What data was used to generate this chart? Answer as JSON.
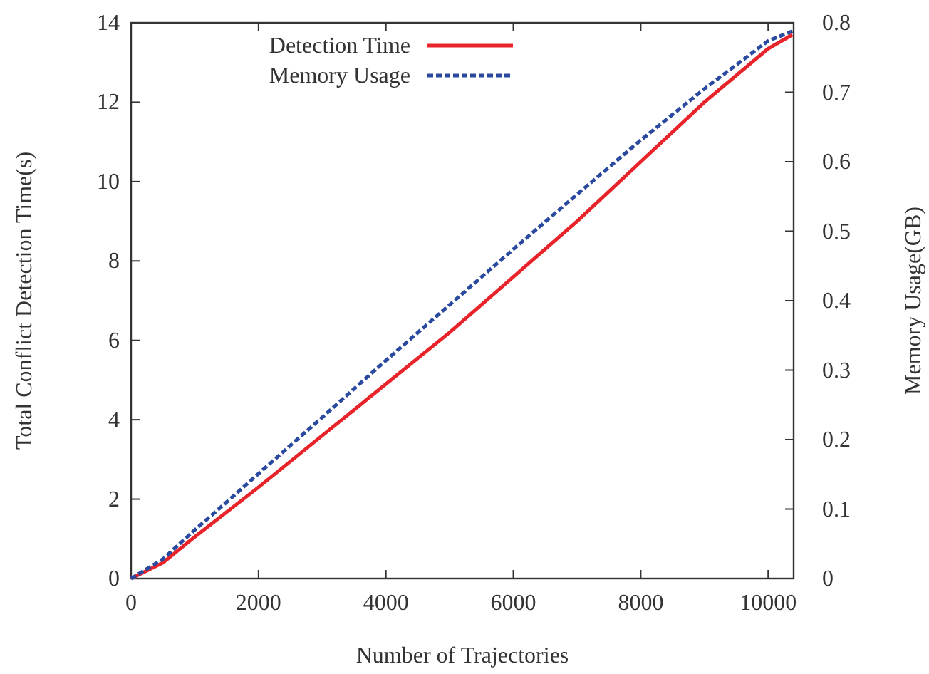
{
  "chart_data": {
    "type": "line",
    "xlabel": "Number of Trajectories",
    "ylabel": "Total Conflict Detection Time(s)",
    "y2label": "Memory Usage(GB)",
    "xlim": [
      0,
      10400
    ],
    "xticks": [
      0,
      2000,
      4000,
      6000,
      8000,
      10000
    ],
    "ylim": [
      0,
      14
    ],
    "yticks": [
      0,
      2,
      4,
      6,
      8,
      10,
      12,
      14
    ],
    "y2lim": [
      0,
      0.8
    ],
    "y2ticks": [
      0,
      0.1,
      0.2,
      0.3,
      0.4,
      0.5,
      0.6,
      0.7,
      0.8
    ],
    "legend": "top left",
    "grid": false,
    "series": [
      {
        "name": "Detection Time",
        "color": "#e8242b",
        "line_style": "solid",
        "x": [
          0,
          500,
          1000,
          2000,
          3000,
          4000,
          5000,
          6000,
          7000,
          8000,
          9000,
          10000,
          10380
        ],
        "values": [
          0,
          0.4,
          1.05,
          2.3,
          3.6,
          4.9,
          6.2,
          7.6,
          9.0,
          10.5,
          12.0,
          13.35,
          13.7
        ]
      },
      {
        "name": "Memory Usage",
        "color": "#2a4aa0",
        "line_style": "dashed",
        "axis": "y2",
        "x": [
          0,
          500,
          1000,
          1500,
          2000,
          3000,
          4000,
          5000,
          6000,
          7000,
          8000,
          9000,
          10000,
          10380
        ],
        "values": [
          0,
          0.028,
          0.07,
          0.11,
          0.151,
          0.232,
          0.314,
          0.394,
          0.474,
          0.553,
          0.631,
          0.705,
          0.774,
          0.788
        ]
      }
    ]
  }
}
